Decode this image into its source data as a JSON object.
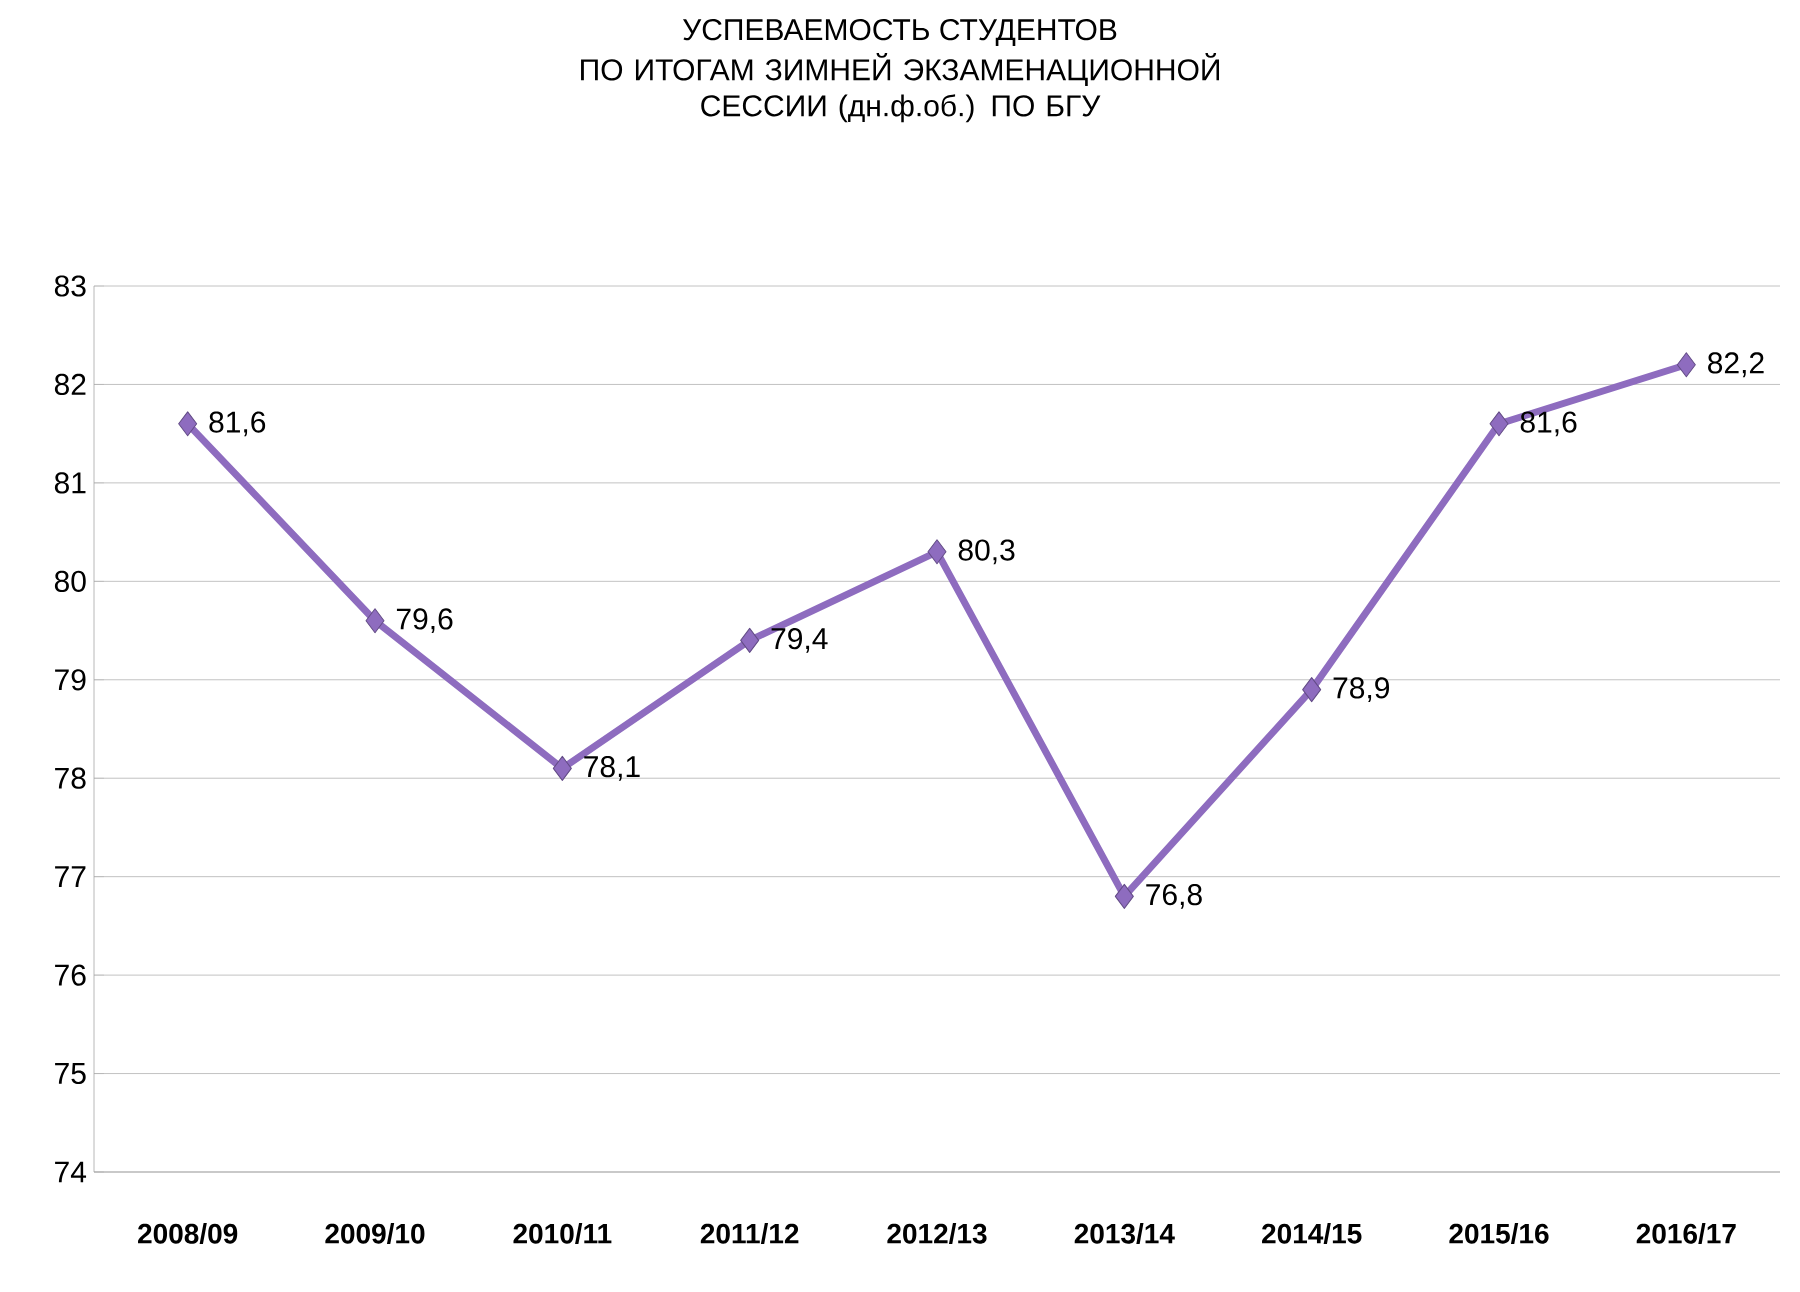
{
  "chart_data": {
    "type": "line",
    "title": "УСПЕВАЕМОСТЬ СТУДЕНТОВ",
    "subtitle": "ПО ИТОГАМ ЗИМНЕЙ ЭКЗАМЕНАЦИОННОЙ СЕССИИ (дн.ф.об.) ПО БГУ",
    "categories": [
      "2008/09",
      "2009/10",
      "2010/11",
      "2011/12",
      "2012/13",
      "2013/14",
      "2014/15",
      "2015/16",
      "2016/17"
    ],
    "series": [
      {
        "color": "#8e6cbf",
        "values": [
          81.6,
          79.6,
          78.1,
          79.4,
          80.3,
          76.8,
          78.9,
          81.6,
          82.2
        ],
        "value_labels": [
          "81,6",
          "79,6",
          "78,1",
          "79,4",
          "80,3",
          "76,8",
          "78,9",
          "81,6",
          "82,2"
        ]
      }
    ],
    "ylim": [
      74,
      83
    ],
    "yticks": [
      74,
      75,
      76,
      77,
      78,
      79,
      80,
      81,
      82,
      83
    ],
    "grid": "y",
    "marker": "diamond",
    "line_style": "solid"
  }
}
